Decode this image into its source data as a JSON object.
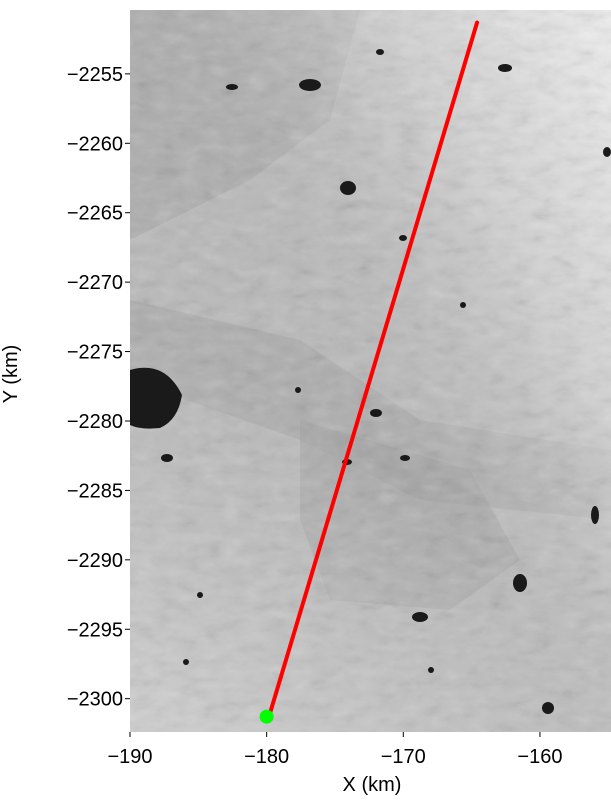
{
  "chart_data": {
    "type": "line",
    "title": "",
    "xlabel": "X (km)",
    "ylabel": "Y (km)",
    "xlim": [
      -190,
      -154.8
    ],
    "ylim": [
      -2302.4,
      -2250.4
    ],
    "x_ticks": [
      -190,
      -180,
      -170,
      -160
    ],
    "x_tick_labels": [
      "−190",
      "−180",
      "−170",
      "−160"
    ],
    "y_ticks": [
      -2255,
      -2260,
      -2265,
      -2270,
      -2275,
      -2280,
      -2285,
      -2290,
      -2295,
      -2300
    ],
    "y_tick_labels": [
      "−2255",
      "−2260",
      "−2265",
      "−2270",
      "−2275",
      "−2280",
      "−2285",
      "−2290",
      "−2295",
      "−2300"
    ],
    "grid": false,
    "legend": "none",
    "background": "grayscale satellite image of ice sheet surface",
    "series": [
      {
        "type": "line",
        "color": "#ff0000",
        "x": [
          -179.8,
          -164.6
        ],
        "y": [
          -2301.2,
          -2251.3
        ]
      },
      {
        "type": "point",
        "color": "#00ff00",
        "x": [
          -180.0
        ],
        "y": [
          -2301.3
        ]
      }
    ]
  }
}
